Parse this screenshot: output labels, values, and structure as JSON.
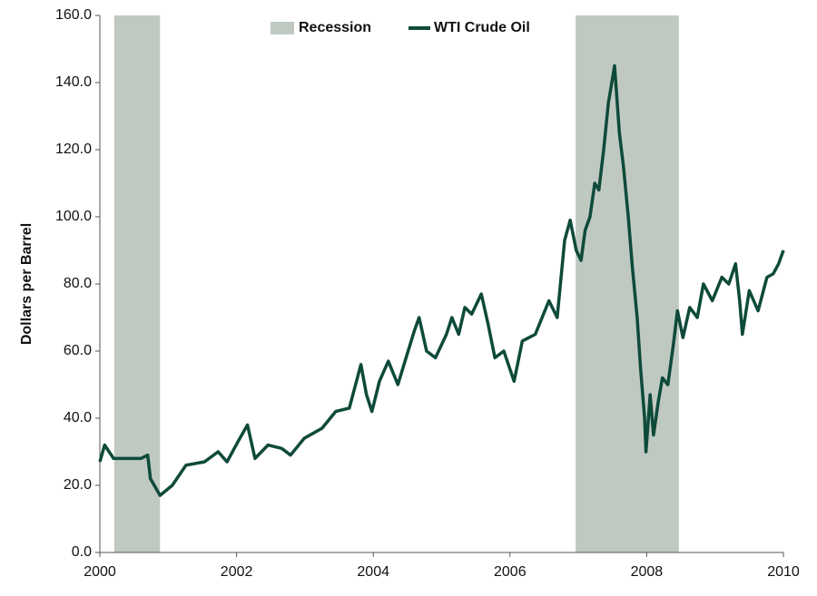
{
  "chart_data": {
    "type": "line",
    "ylabel": "Dollars per Barrel",
    "xlim": [
      2000,
      2010
    ],
    "xticks": [
      2000,
      2002,
      2004,
      2006,
      2008,
      2010
    ],
    "ylim": [
      0,
      160
    ],
    "yticks": [
      {
        "value": 0,
        "label": "0.0"
      },
      {
        "value": 20,
        "label": "20.0"
      },
      {
        "value": 40,
        "label": "40.0"
      },
      {
        "value": 60,
        "label": "60.0"
      },
      {
        "value": 80,
        "label": "80.0"
      },
      {
        "value": 100,
        "label": "100.0"
      },
      {
        "value": 120,
        "label": "120.0"
      },
      {
        "value": 140,
        "label": "140.0"
      },
      {
        "value": 160,
        "label": "160.0"
      }
    ],
    "legend": "top",
    "bands": {
      "name": "Recession",
      "color": "#bfc9c2",
      "ranges": [
        [
          2000.21,
          2000.88
        ],
        [
          2006.96,
          2008.47
        ]
      ]
    },
    "series": [
      {
        "name": "WTI Crude Oil",
        "color": "#0e4a3a",
        "x": [
          2000.0,
          2000.07,
          2000.2,
          2000.4,
          2000.6,
          2000.7,
          2000.74,
          2000.88,
          2001.06,
          2001.26,
          2001.53,
          2001.73,
          2001.86,
          2002.02,
          2002.16,
          2002.27,
          2002.46,
          2002.66,
          2002.79,
          2002.99,
          2003.25,
          2003.45,
          2003.65,
          2003.82,
          2003.9,
          2003.98,
          2004.09,
          2004.22,
          2004.36,
          2004.48,
          2004.6,
          2004.67,
          2004.78,
          2004.91,
          2005.07,
          2005.15,
          2005.25,
          2005.34,
          2005.44,
          2005.58,
          2005.68,
          2005.78,
          2005.91,
          2006.06,
          2006.18,
          2006.37,
          2006.57,
          2006.69,
          2006.8,
          2006.88,
          2006.97,
          2007.04,
          2007.1,
          2007.17,
          2007.24,
          2007.3,
          2007.37,
          2007.44,
          2007.49,
          2007.53,
          2007.6,
          2007.66,
          2007.73,
          2007.79,
          2007.86,
          2007.91,
          2007.97,
          2007.99,
          2008.05,
          2008.1,
          2008.17,
          2008.23,
          2008.31,
          2008.39,
          2008.45,
          2008.53,
          2008.63,
          2008.74,
          2008.83,
          2008.96,
          2009.1,
          2009.2,
          2009.3,
          2009.36,
          2009.4,
          2009.5,
          2009.63,
          2009.76,
          2009.85,
          2009.93,
          2010.0
        ],
        "values": [
          27,
          32,
          28,
          28,
          28,
          29,
          22,
          17,
          20,
          26,
          27,
          30,
          27,
          33,
          38,
          28,
          32,
          31,
          29,
          34,
          37,
          42,
          43,
          56,
          47,
          42,
          51,
          57,
          50,
          58,
          66,
          70,
          60,
          58,
          65,
          70,
          65,
          73,
          71,
          77,
          68,
          58,
          60,
          51,
          63,
          65,
          75,
          70,
          93,
          99,
          90,
          87,
          96,
          100,
          110,
          108,
          120,
          134,
          140,
          145,
          125,
          115,
          100,
          85,
          70,
          55,
          40,
          30,
          47,
          35,
          45,
          52,
          50,
          62,
          72,
          64,
          73,
          70,
          80,
          75,
          82,
          80,
          86,
          75,
          65,
          78,
          72,
          82,
          83,
          86,
          90
        ]
      }
    ]
  }
}
